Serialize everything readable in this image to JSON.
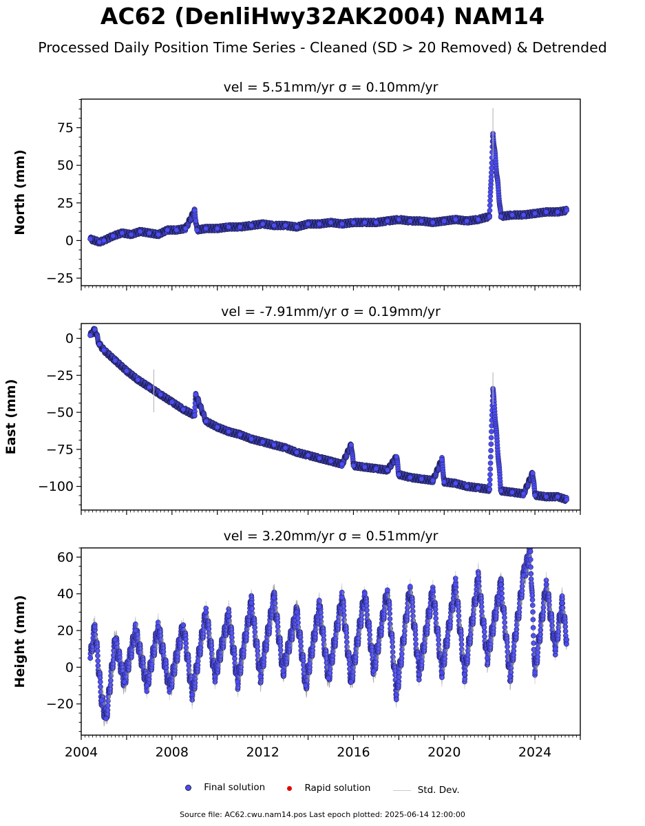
{
  "title": "AC62 (DenliHwy32AK2004) NAM14",
  "subtitle": "Processed Daily Position Time Series - Cleaned (SD > 20 Removed) & Detrended",
  "footer": "Source file: AC62.cwu.nam14.pos  Last epoch plotted: 2025-06-14 12:00:00",
  "legend": [
    {
      "label": "Final solution",
      "color": "#4c4cf5"
    },
    {
      "label": "Rapid solution",
      "color": "#e00000"
    },
    {
      "label": "Std. Dev.",
      "color": "#c8c8c8"
    }
  ],
  "chart_data": [
    {
      "type": "scatter",
      "title": "vel = 5.51mm/yr   σ = 0.10mm/yr",
      "ylabel": "North (mm)",
      "xlim": [
        2004.0,
        2026.0
      ],
      "ylim": [
        -30,
        94
      ],
      "yticks": [
        -25,
        0,
        25,
        50,
        75
      ],
      "series": [
        {
          "name": "Final solution",
          "color": "#4c4cf5",
          "points": [
            [
              2004.4,
              1
            ],
            [
              2004.8,
              -1
            ],
            [
              2005.0,
              0
            ],
            [
              2005.4,
              3
            ],
            [
              2005.8,
              5
            ],
            [
              2006.2,
              4
            ],
            [
              2006.6,
              6
            ],
            [
              2007.0,
              5
            ],
            [
              2007.4,
              4
            ],
            [
              2007.8,
              7
            ],
            [
              2008.2,
              7
            ],
            [
              2008.6,
              8
            ],
            [
              2009.0,
              20
            ],
            [
              2009.05,
              13
            ],
            [
              2009.1,
              7
            ],
            [
              2009.5,
              8
            ],
            [
              2010.0,
              8
            ],
            [
              2010.5,
              9
            ],
            [
              2011.0,
              9
            ],
            [
              2011.5,
              10
            ],
            [
              2012.0,
              11
            ],
            [
              2012.5,
              10
            ],
            [
              2013.0,
              10
            ],
            [
              2013.5,
              9
            ],
            [
              2014.0,
              11
            ],
            [
              2014.5,
              11
            ],
            [
              2015.0,
              12
            ],
            [
              2015.5,
              11
            ],
            [
              2016.0,
              12
            ],
            [
              2016.5,
              12
            ],
            [
              2017.0,
              12
            ],
            [
              2017.5,
              13
            ],
            [
              2018.0,
              14
            ],
            [
              2018.5,
              13
            ],
            [
              2019.0,
              13
            ],
            [
              2019.5,
              12
            ],
            [
              2020.0,
              13
            ],
            [
              2020.5,
              14
            ],
            [
              2021.0,
              13
            ],
            [
              2021.5,
              14
            ],
            [
              2022.0,
              16
            ],
            [
              2022.15,
              71
            ],
            [
              2022.5,
              16
            ],
            [
              2023.0,
              17
            ],
            [
              2023.5,
              17
            ],
            [
              2024.0,
              18
            ],
            [
              2024.5,
              19
            ],
            [
              2025.0,
              19
            ],
            [
              2025.4,
              20
            ]
          ]
        },
        {
          "name": "Rapid solution",
          "color": "#e00000",
          "points": []
        }
      ]
    },
    {
      "type": "scatter",
      "title": "vel = -7.91mm/yr   σ = 0.19mm/yr",
      "ylabel": "East (mm)",
      "xlim": [
        2004.0,
        2026.0
      ],
      "ylim": [
        -116,
        10
      ],
      "yticks": [
        -100,
        -75,
        -50,
        -25,
        0
      ],
      "series": [
        {
          "name": "Final solution",
          "color": "#4c4cf5",
          "points": [
            [
              2004.4,
              2
            ],
            [
              2004.6,
              6
            ],
            [
              2004.8,
              -4
            ],
            [
              2005.0,
              -8
            ],
            [
              2005.5,
              -15
            ],
            [
              2006.0,
              -22
            ],
            [
              2006.5,
              -28
            ],
            [
              2007.0,
              -33
            ],
            [
              2007.5,
              -38
            ],
            [
              2008.0,
              -43
            ],
            [
              2008.5,
              -48
            ],
            [
              2009.0,
              -52
            ],
            [
              2009.05,
              -38
            ],
            [
              2009.5,
              -56
            ],
            [
              2010.0,
              -60
            ],
            [
              2010.5,
              -63
            ],
            [
              2011.0,
              -65
            ],
            [
              2011.5,
              -68
            ],
            [
              2012.0,
              -70
            ],
            [
              2012.5,
              -72
            ],
            [
              2013.0,
              -74
            ],
            [
              2013.5,
              -77
            ],
            [
              2014.0,
              -79
            ],
            [
              2014.5,
              -81
            ],
            [
              2015.0,
              -83
            ],
            [
              2015.5,
              -85
            ],
            [
              2015.9,
              -72
            ],
            [
              2016.0,
              -86
            ],
            [
              2016.5,
              -87
            ],
            [
              2017.0,
              -88
            ],
            [
              2017.5,
              -89
            ],
            [
              2017.9,
              -80
            ],
            [
              2018.0,
              -92
            ],
            [
              2018.5,
              -94
            ],
            [
              2019.0,
              -95
            ],
            [
              2019.5,
              -96
            ],
            [
              2019.9,
              -82
            ],
            [
              2020.0,
              -97
            ],
            [
              2020.5,
              -98
            ],
            [
              2021.0,
              -100
            ],
            [
              2021.5,
              -101
            ],
            [
              2022.0,
              -102
            ],
            [
              2022.15,
              -34
            ],
            [
              2022.5,
              -103
            ],
            [
              2023.0,
              -104
            ],
            [
              2023.5,
              -105
            ],
            [
              2023.9,
              -91
            ],
            [
              2024.0,
              -106
            ],
            [
              2024.5,
              -107
            ],
            [
              2025.0,
              -107
            ],
            [
              2025.4,
              -109
            ]
          ]
        },
        {
          "name": "Rapid solution",
          "color": "#e00000",
          "points": []
        }
      ]
    },
    {
      "type": "scatter",
      "title": "vel = 3.20mm/yr   σ = 0.51mm/yr",
      "ylabel": "Height (mm)",
      "xlim": [
        2004.0,
        2026.0
      ],
      "ylim": [
        -37,
        65
      ],
      "yticks": [
        -20,
        0,
        20,
        40,
        60
      ],
      "xticks": [
        2004,
        2008,
        2012,
        2016,
        2020,
        2024
      ],
      "series": [
        {
          "name": "Final solution",
          "color": "#4c4cf5",
          "points": [
            [
              2004.4,
              5
            ],
            [
              2004.6,
              22
            ],
            [
              2004.9,
              -18
            ],
            [
              2005.1,
              -28
            ],
            [
              2005.5,
              15
            ],
            [
              2005.9,
              -8
            ],
            [
              2006.4,
              20
            ],
            [
              2006.9,
              -10
            ],
            [
              2007.4,
              22
            ],
            [
              2007.9,
              -12
            ],
            [
              2008.5,
              23
            ],
            [
              2008.9,
              -15
            ],
            [
              2009.5,
              30
            ],
            [
              2009.9,
              -5
            ],
            [
              2010.5,
              28
            ],
            [
              2010.9,
              -8
            ],
            [
              2011.5,
              35
            ],
            [
              2011.9,
              -5
            ],
            [
              2012.5,
              38
            ],
            [
              2012.9,
              -2
            ],
            [
              2013.5,
              30
            ],
            [
              2013.9,
              -10
            ],
            [
              2014.5,
              33
            ],
            [
              2014.9,
              -6
            ],
            [
              2015.5,
              38
            ],
            [
              2015.9,
              -8
            ],
            [
              2016.5,
              40
            ],
            [
              2016.9,
              -2
            ],
            [
              2017.5,
              42
            ],
            [
              2017.9,
              -15
            ],
            [
              2018.5,
              44
            ],
            [
              2018.9,
              -4
            ],
            [
              2019.5,
              42
            ],
            [
              2019.9,
              -3
            ],
            [
              2020.5,
              45
            ],
            [
              2020.9,
              -4
            ],
            [
              2021.5,
              48
            ],
            [
              2021.9,
              5
            ],
            [
              2022.5,
              45
            ],
            [
              2022.9,
              -5
            ],
            [
              2023.5,
              50
            ],
            [
              2023.8,
              63
            ],
            [
              2024.0,
              -3
            ],
            [
              2024.5,
              45
            ],
            [
              2024.9,
              10
            ],
            [
              2025.2,
              35
            ],
            [
              2025.4,
              15
            ]
          ]
        },
        {
          "name": "Rapid solution",
          "color": "#e00000",
          "points": []
        }
      ]
    }
  ]
}
